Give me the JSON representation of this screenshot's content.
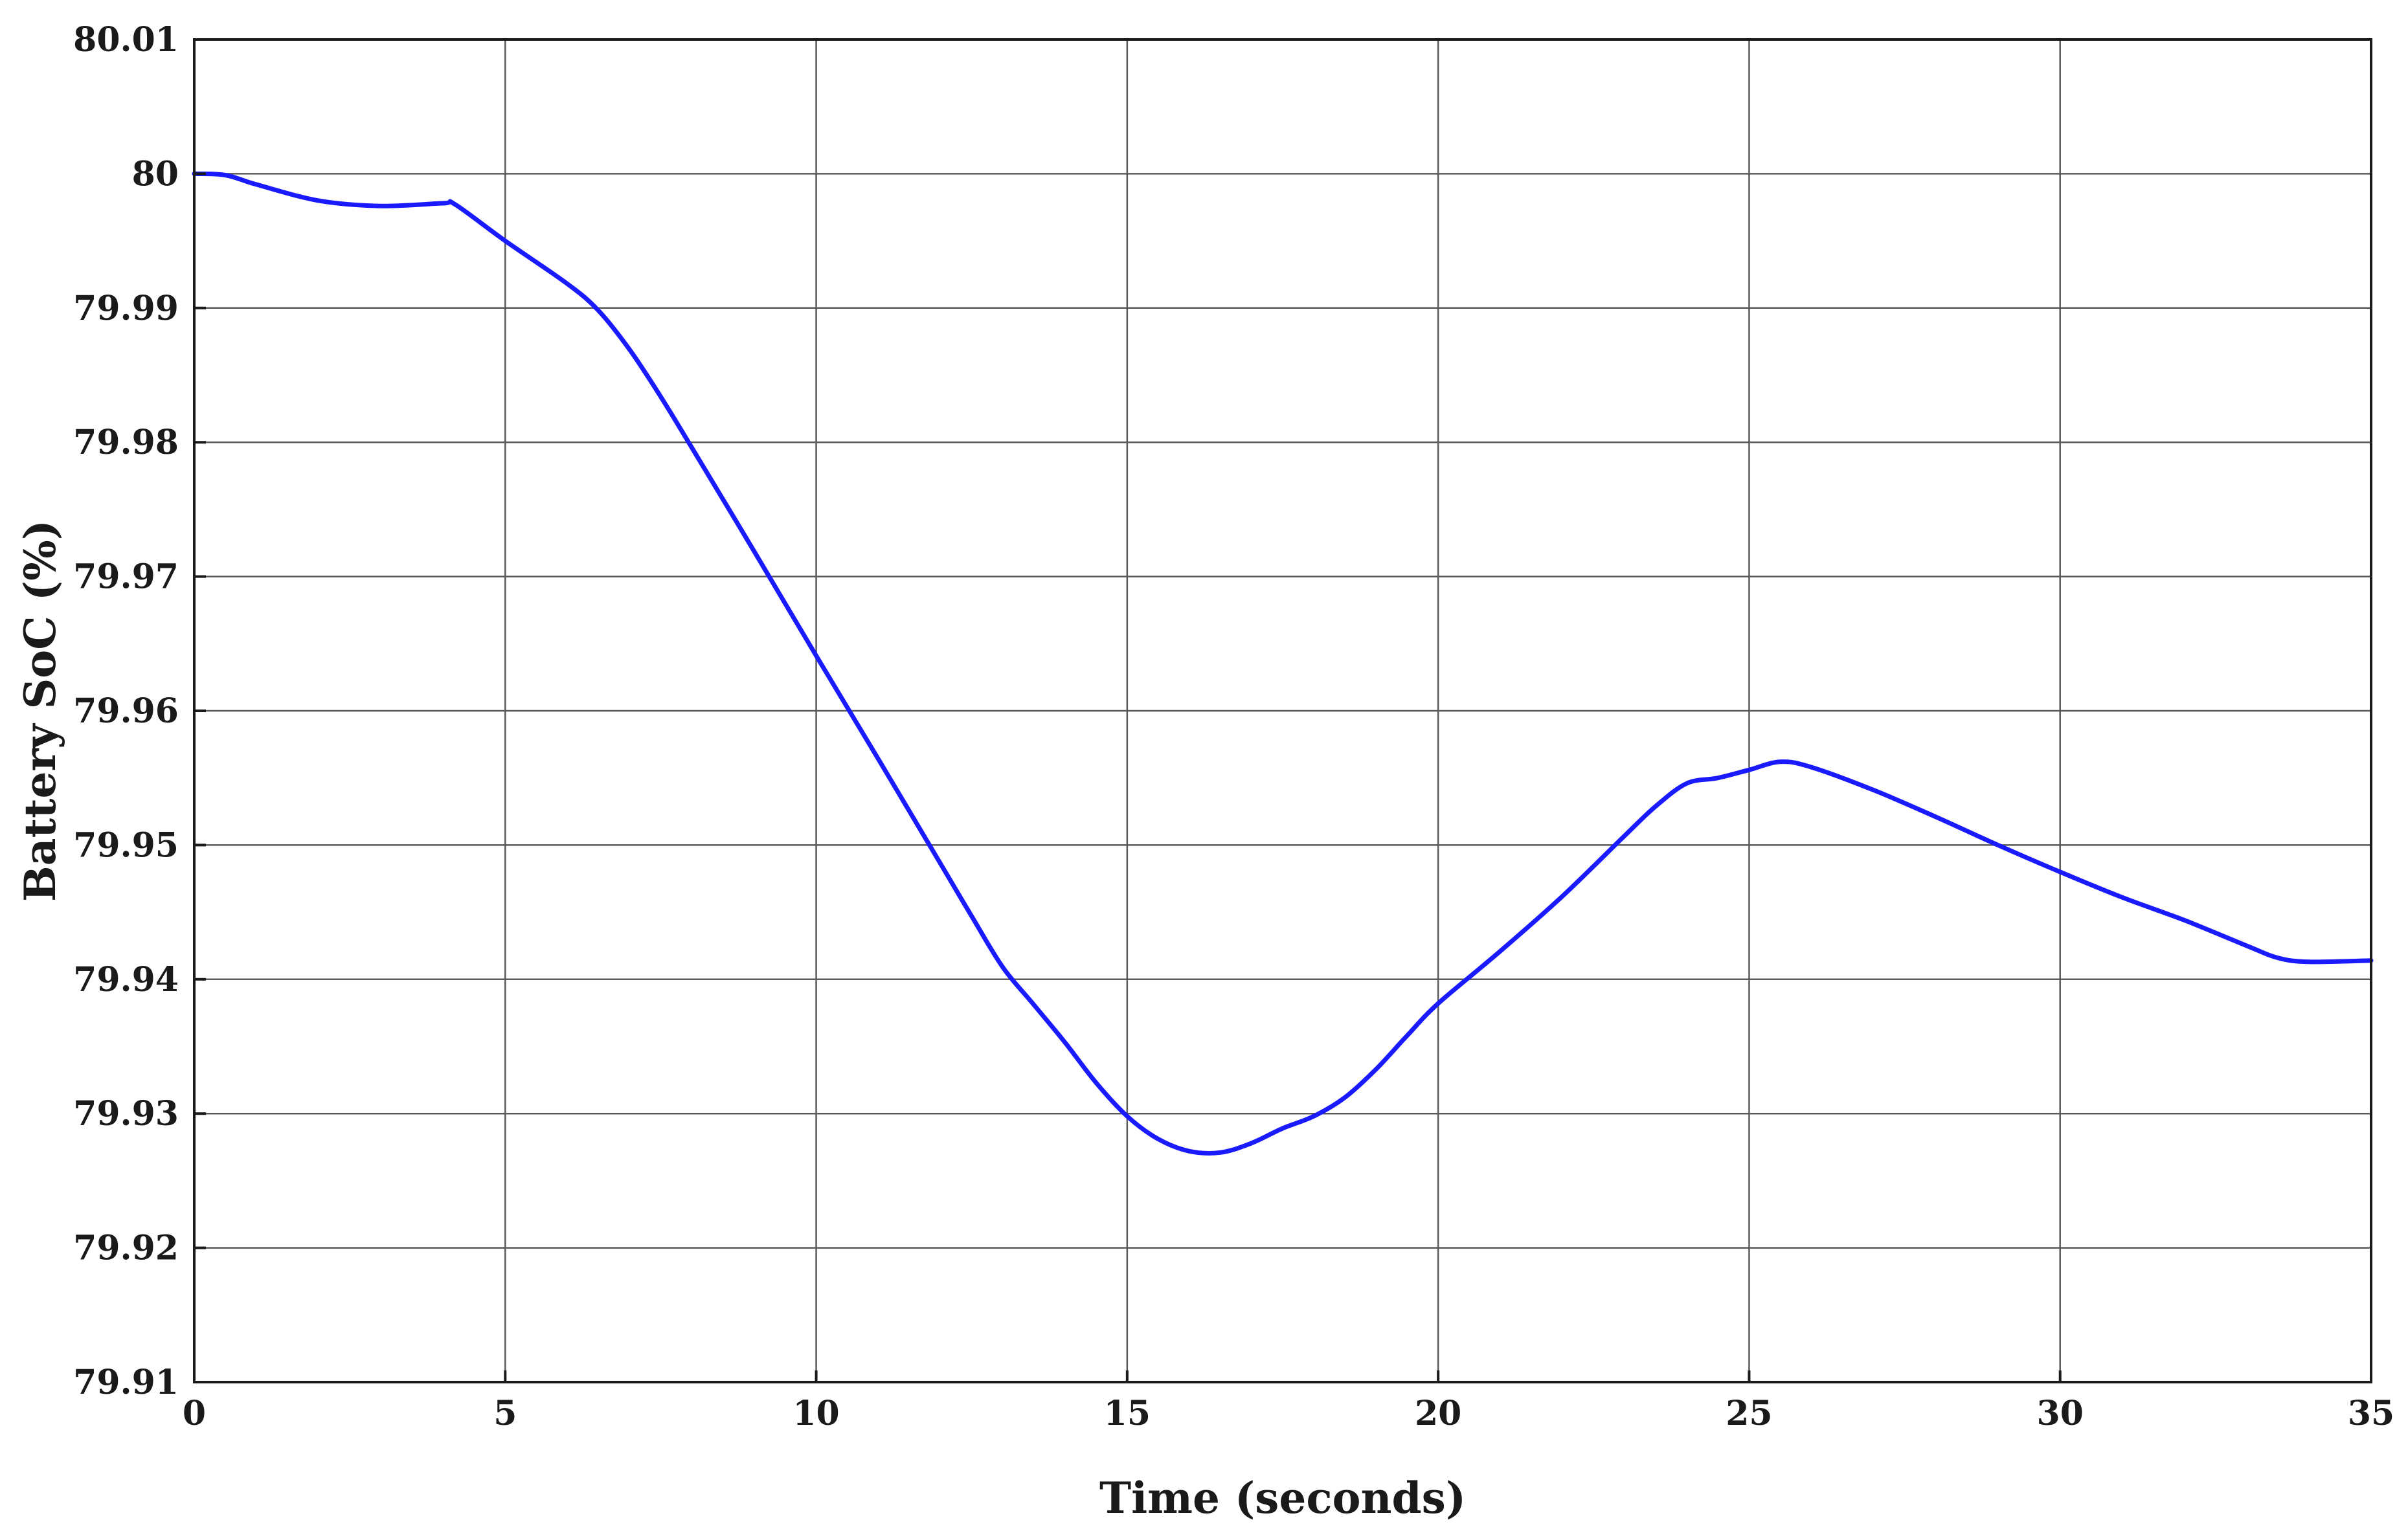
{
  "chart_data": {
    "type": "line",
    "title": "",
    "xlabel": "Time (seconds)",
    "ylabel": "Battery SoC (%)",
    "xlim": [
      0,
      35
    ],
    "ylim": [
      79.91,
      80.01
    ],
    "x_ticks": [
      0,
      5,
      10,
      15,
      20,
      25,
      30,
      35
    ],
    "y_ticks": [
      79.91,
      79.92,
      79.93,
      79.94,
      79.95,
      79.96,
      79.97,
      79.98,
      79.99,
      80,
      80.01
    ],
    "x_tick_labels": [
      "0",
      "5",
      "10",
      "15",
      "20",
      "25",
      "30",
      "35"
    ],
    "y_tick_labels": [
      "79.91",
      "79.92",
      "79.93",
      "79.94",
      "79.95",
      "79.96",
      "79.97",
      "79.98",
      "79.99",
      "80",
      "80.01"
    ],
    "grid": true,
    "legend": "none",
    "series": [
      {
        "color": "#1a1aff",
        "x": [
          0,
          0.5,
          1,
          2,
          3,
          4,
          4.2,
          5,
          6,
          6.5,
          7,
          7.5,
          8,
          9,
          10,
          11,
          12,
          12.5,
          13,
          13.5,
          14,
          14.5,
          15,
          15.5,
          16,
          16.5,
          17,
          17.5,
          18,
          18.5,
          19,
          19.5,
          20,
          21,
          22,
          23,
          23.5,
          24,
          24.5,
          25,
          25.5,
          26,
          27,
          28,
          29,
          30,
          31,
          32,
          33,
          33.5,
          34,
          35
        ],
        "y": [
          80.0,
          79.9999,
          79.9992,
          79.998,
          79.9976,
          79.9978,
          79.9977,
          79.995,
          79.9918,
          79.9898,
          79.9869,
          79.9834,
          79.9796,
          79.9719,
          79.9641,
          79.9564,
          79.9486,
          79.9447,
          79.9409,
          79.9381,
          79.9353,
          79.9323,
          79.9298,
          79.9281,
          79.9272,
          79.9271,
          79.9278,
          79.9289,
          79.9298,
          79.9312,
          79.9333,
          79.9358,
          79.9382,
          79.9421,
          79.9462,
          79.9507,
          79.9529,
          79.9546,
          79.955,
          79.9556,
          79.9562,
          79.9558,
          79.9541,
          79.9521,
          79.95,
          79.948,
          79.9461,
          79.9444,
          79.9425,
          79.9416,
          79.9413,
          79.9414
        ]
      }
    ]
  }
}
